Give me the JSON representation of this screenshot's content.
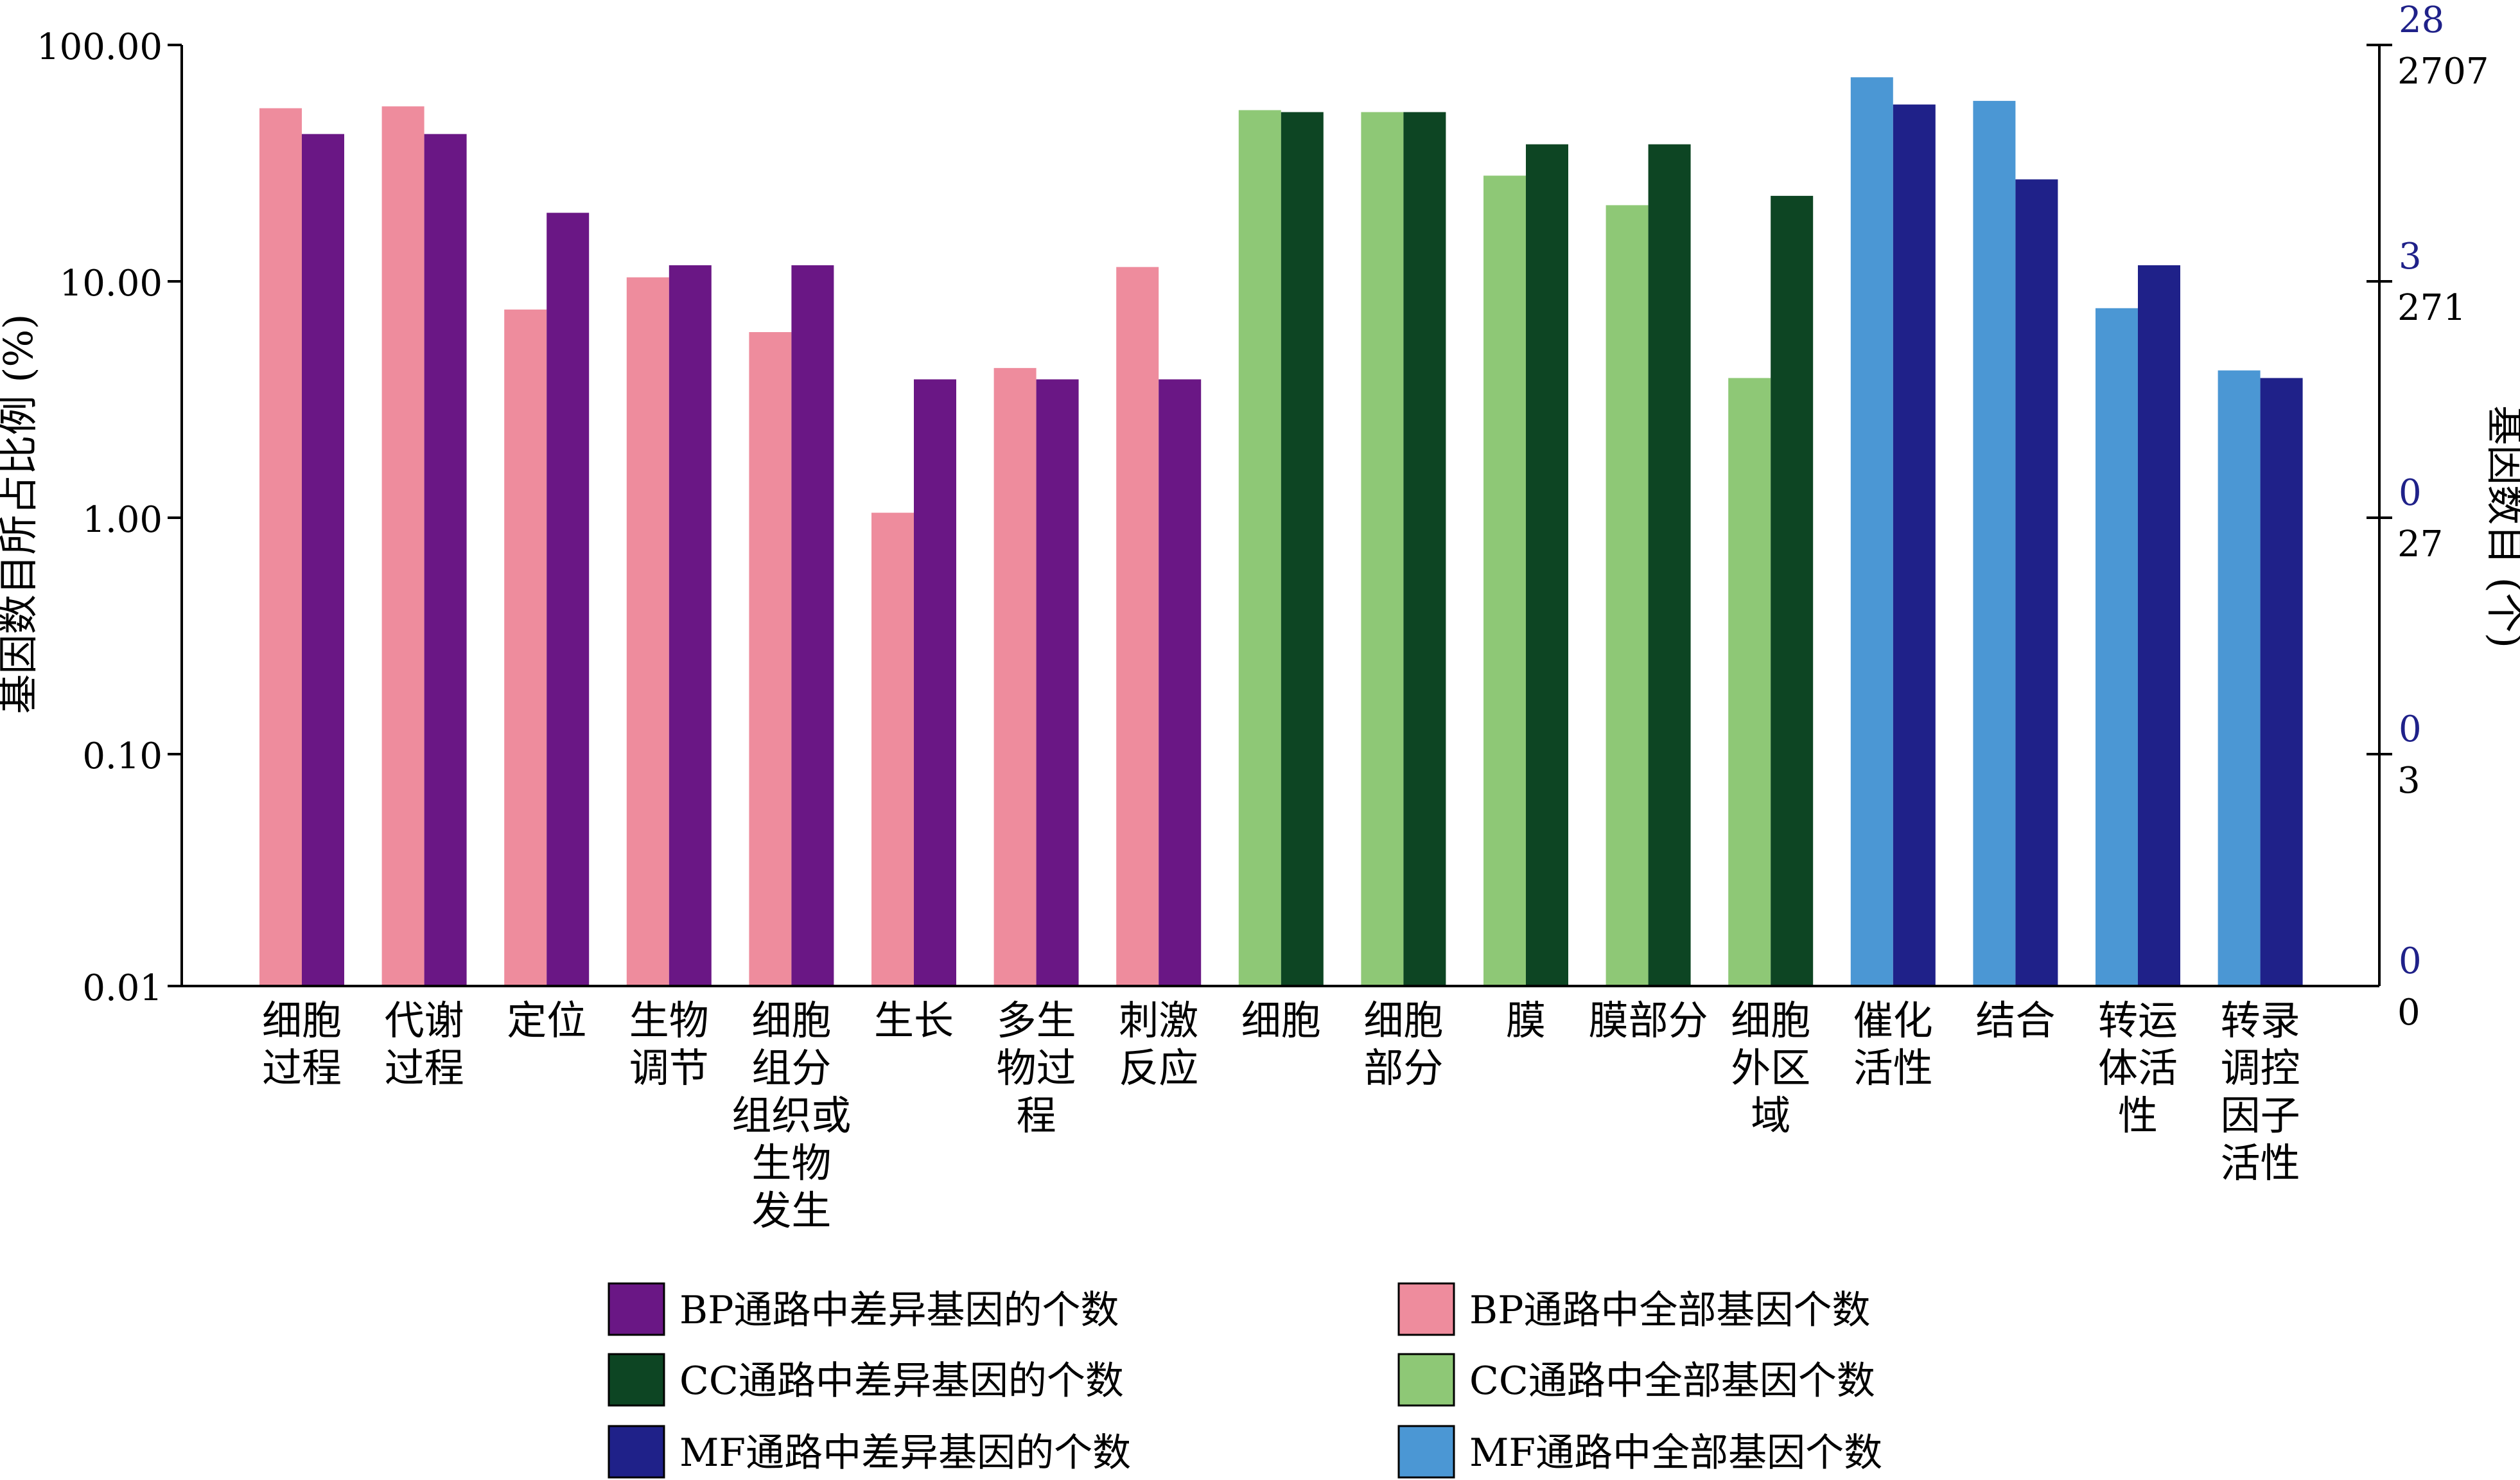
{
  "chart_data": {
    "type": "bar",
    "categories": [
      [
        "细胞",
        "过程"
      ],
      [
        "代谢",
        "过程"
      ],
      [
        "定位"
      ],
      [
        "生物",
        "调节"
      ],
      [
        "细胞",
        "组分",
        "组织或",
        "生物",
        "发生"
      ],
      [
        "生长"
      ],
      [
        "多生",
        "物过",
        "程"
      ],
      [
        "刺激",
        "反应"
      ],
      [
        "细胞"
      ],
      [
        "细胞",
        "部分"
      ],
      [
        "膜"
      ],
      [
        "膜部分"
      ],
      [
        "细胞",
        "外区",
        "域"
      ],
      [
        "催化",
        "活性"
      ],
      [
        "结合"
      ],
      [
        "转运",
        "体活",
        "性"
      ],
      [
        "转录",
        "调控",
        "因子",
        "活性"
      ]
    ],
    "groups": [
      "BP",
      "BP",
      "BP",
      "BP",
      "BP",
      "BP",
      "BP",
      "BP",
      "CC",
      "CC",
      "CC",
      "CC",
      "CC",
      "MF",
      "MF",
      "MF",
      "MF"
    ],
    "series": [
      {
        "role": "all",
        "values": [
          54,
          55,
          7.6,
          10.4,
          6.1,
          1.05,
          4.3,
          11.5,
          53,
          52,
          28,
          21,
          3.9,
          73,
          58,
          7.7,
          4.2
        ]
      },
      {
        "role": "de",
        "values": [
          42,
          42,
          19.5,
          11.7,
          11.7,
          3.85,
          3.85,
          3.85,
          52,
          52,
          38,
          38,
          23,
          56,
          27,
          11.7,
          3.9
        ]
      }
    ],
    "colors": {
      "BP": {
        "all": "#ee8c9d",
        "de": "#6a1785"
      },
      "CC": {
        "all": "#8ec876",
        "de": "#0d4523"
      },
      "MF": {
        "all": "#4b97d4",
        "de": "#1f2189"
      }
    },
    "left_axis": {
      "label": "基因数目所占比例 (%)",
      "scale": "log",
      "ylim": [
        0.01,
        100
      ],
      "ticks": [
        0.01,
        0.1,
        1,
        10,
        100
      ],
      "tick_labels": [
        "0.01",
        "0.10",
        "1.00",
        "10.00",
        "100.00"
      ]
    },
    "right_axis": {
      "label": "基因数目 (个)",
      "ticks": [
        {
          "value": 100,
          "black": "2707",
          "blue": "28"
        },
        {
          "value": 10,
          "black": "271",
          "blue": "3"
        },
        {
          "value": 1,
          "black": "27",
          "blue": "0"
        },
        {
          "value": 0.1,
          "black": "3",
          "blue": "0"
        },
        {
          "value": 0.01,
          "black": "0",
          "blue": "0"
        }
      ]
    },
    "legend": {
      "placement": "bottom",
      "items": [
        {
          "label": "BP通路中差异基因的个数",
          "color": "#6a1785"
        },
        {
          "label": "BP通路中全部基因个数",
          "color": "#ee8c9d"
        },
        {
          "label": "CC通路中差异基因的个数",
          "color": "#0d4523"
        },
        {
          "label": "CC通路中全部基因个数",
          "color": "#8ec876"
        },
        {
          "label": "MF通路中差异基因的个数",
          "color": "#1f2189"
        },
        {
          "label": "MF通路中全部基因个数",
          "color": "#4b97d4"
        }
      ]
    },
    "grid": false
  }
}
